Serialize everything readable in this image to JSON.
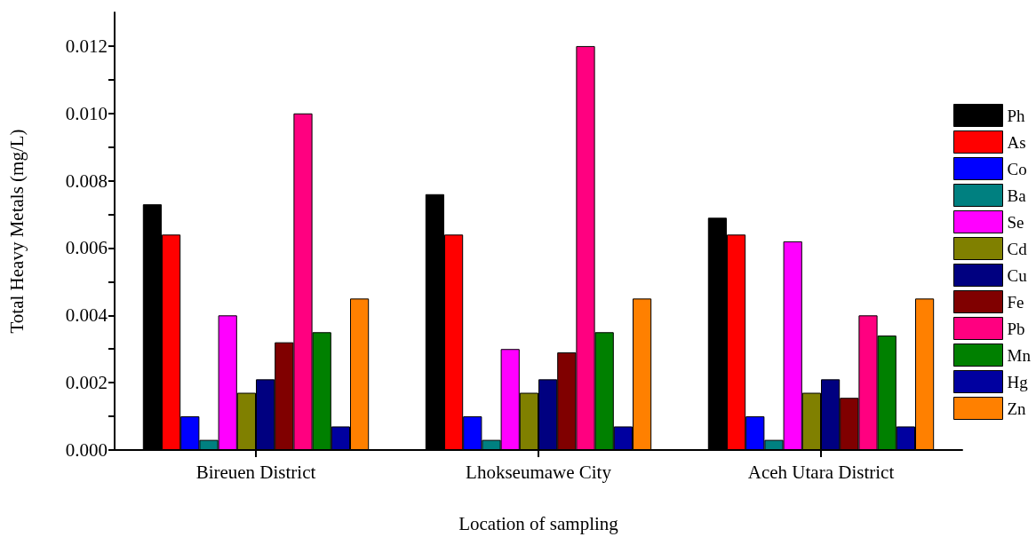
{
  "chart_data": {
    "type": "bar",
    "xlabel": "Location of sampling",
    "ylabel": "Total Heavy Metals (mg/L)",
    "categories": [
      "Bireuen District",
      "Lhokseumawe City",
      "Aceh Utara District"
    ],
    "series": [
      {
        "name": "Ph",
        "color": "#000000",
        "values": [
          0.0073,
          0.0076,
          0.0069
        ]
      },
      {
        "name": "As",
        "color": "#ff0000",
        "values": [
          0.0064,
          0.0064,
          0.0064
        ]
      },
      {
        "name": "Co",
        "color": "#0000ff",
        "values": [
          0.001,
          0.001,
          0.001
        ]
      },
      {
        "name": "Ba",
        "color": "#008080",
        "values": [
          0.0003,
          0.0003,
          0.0003
        ]
      },
      {
        "name": "Se",
        "color": "#ff00ff",
        "values": [
          0.004,
          0.003,
          0.0062
        ]
      },
      {
        "name": "Cd",
        "color": "#808000",
        "values": [
          0.0017,
          0.0017,
          0.0017
        ]
      },
      {
        "name": "Cu",
        "color": "#000080",
        "values": [
          0.0021,
          0.0021,
          0.0021
        ]
      },
      {
        "name": "Fe",
        "color": "#800000",
        "values": [
          0.0032,
          0.0029,
          0.00155
        ]
      },
      {
        "name": "Pb",
        "color": "#ff0080",
        "values": [
          0.01,
          0.012,
          0.004
        ]
      },
      {
        "name": "Mn",
        "color": "#008000",
        "values": [
          0.0035,
          0.0035,
          0.0034
        ]
      },
      {
        "name": "Hg",
        "color": "#0000a0",
        "values": [
          0.0007,
          0.0007,
          0.0007
        ]
      },
      {
        "name": "Zn",
        "color": "#ff8000",
        "values": [
          0.0045,
          0.0045,
          0.0045
        ]
      }
    ],
    "ylim": [
      0,
      0.013
    ],
    "yticks": [
      {
        "value": 0,
        "label": "0.000"
      },
      {
        "value": 0.001,
        "label": null
      },
      {
        "value": 0.002,
        "label": "0.002"
      },
      {
        "value": 0.003,
        "label": null
      },
      {
        "value": 0.004,
        "label": "0.004"
      },
      {
        "value": 0.005,
        "label": null
      },
      {
        "value": 0.006,
        "label": "0.006"
      },
      {
        "value": 0.007,
        "label": null
      },
      {
        "value": 0.008,
        "label": "0.008"
      },
      {
        "value": 0.009,
        "label": null
      },
      {
        "value": 0.01,
        "label": "0.010"
      },
      {
        "value": 0.011,
        "label": null
      },
      {
        "value": 0.012,
        "label": "0.012"
      }
    ],
    "grid": false,
    "legend": "right"
  }
}
